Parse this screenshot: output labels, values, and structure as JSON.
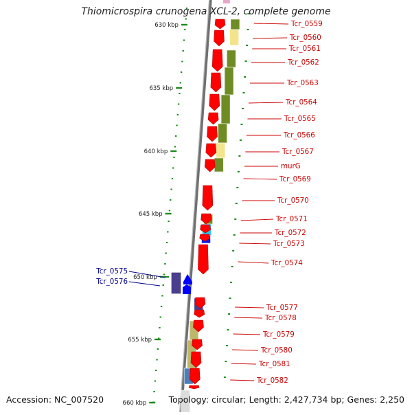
{
  "title": "Thiomicrospira crunogena XCL-2, complete genome",
  "footer": {
    "accession": "Accession: NC_007520",
    "summary": "Topology: circular; Length: 2,427,734 bp; Genes: 2,250"
  },
  "colors": {
    "gene": "#ff0000",
    "gene_edge": "#b00000",
    "gene_blue": "#0000ff",
    "gene_navy": "#4a3f8f",
    "label_red": "#cc0000",
    "label_blue": "#00008b",
    "ruler_green": "#1a8c1a",
    "backbone": "#707070",
    "cog_olive": "#6f8c24",
    "cog_khaki": "#bdb76b",
    "cog_lightyellow": "#f3e48c",
    "cog_cyan": "#28c8ee",
    "cog_blue": "#1418e6",
    "cog_navy": "#4a3f8f",
    "cog_steel": "#4a7fb8",
    "cog_lightgray": "#dcdcdc"
  },
  "scale_labels": [
    "630 kbp",
    "635 kbp",
    "640 kbp",
    "645 kbp",
    "650 kbp",
    "655 kbp",
    "660 kbp"
  ],
  "gene_labels_right": [
    "Tcr_0559",
    "Tcr_0560",
    "Tcr_0561",
    "Tcr_0562",
    "Tcr_0563",
    "Tcr_0564",
    "Tcr_0565",
    "Tcr_0566",
    "Tcr_0567",
    "murG",
    "Tcr_0569",
    "Tcr_0570",
    "Tcr_0571",
    "Tcr_0572",
    "Tcr_0573",
    "Tcr_0574",
    "Tcr_0577",
    "Tcr_0578",
    "Tcr_0579",
    "Tcr_0580",
    "Tcr_0581",
    "Tcr_0582"
  ],
  "gene_labels_left": [
    "Tcr_0575",
    "Tcr_0576"
  ]
}
